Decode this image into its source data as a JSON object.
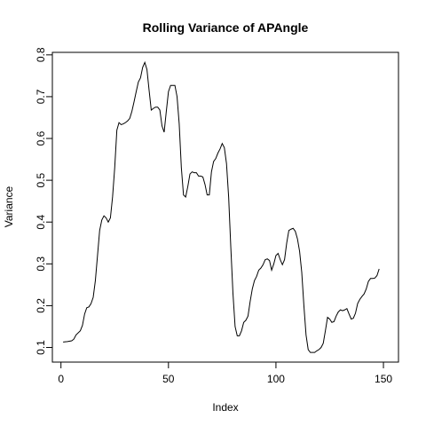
{
  "chart_data": {
    "type": "line",
    "title": "Rolling Variance of APAngle",
    "xlabel": "Index",
    "ylabel": "Variance",
    "xlim": [
      -4,
      157
    ],
    "ylim": [
      0.065,
      0.806
    ],
    "xticks": [
      0,
      50,
      100,
      150
    ],
    "yticks": [
      0.1,
      0.2,
      0.3,
      0.4,
      0.5,
      0.6,
      0.7,
      0.8
    ],
    "xtick_labels": [
      "0",
      "50",
      "100",
      "150"
    ],
    "ytick_labels": [
      "0.1",
      "0.2",
      "0.3",
      "0.4",
      "0.5",
      "0.6",
      "0.7",
      "0.8"
    ],
    "grid": false,
    "line_color": "#000000",
    "series": [
      {
        "points": [
          [
            1,
            0.113
          ],
          [
            3,
            0.114
          ],
          [
            5,
            0.116
          ],
          [
            6,
            0.12
          ],
          [
            7,
            0.13
          ],
          [
            9,
            0.14
          ],
          [
            10,
            0.153
          ],
          [
            11,
            0.18
          ],
          [
            12,
            0.195
          ],
          [
            13,
            0.197
          ],
          [
            14,
            0.205
          ],
          [
            15,
            0.22
          ],
          [
            16,
            0.26
          ],
          [
            17,
            0.32
          ],
          [
            18,
            0.38
          ],
          [
            19,
            0.405
          ],
          [
            20,
            0.415
          ],
          [
            21,
            0.41
          ],
          [
            22,
            0.4
          ],
          [
            23,
            0.41
          ],
          [
            24,
            0.46
          ],
          [
            25,
            0.53
          ],
          [
            26,
            0.62
          ],
          [
            27,
            0.638
          ],
          [
            28,
            0.633
          ],
          [
            29,
            0.635
          ],
          [
            30,
            0.638
          ],
          [
            31,
            0.642
          ],
          [
            32,
            0.648
          ],
          [
            33,
            0.665
          ],
          [
            34,
            0.688
          ],
          [
            35,
            0.712
          ],
          [
            36,
            0.735
          ],
          [
            37,
            0.745
          ],
          [
            38,
            0.77
          ],
          [
            39,
            0.782
          ],
          [
            40,
            0.765
          ],
          [
            41,
            0.715
          ],
          [
            42,
            0.668
          ],
          [
            43,
            0.672
          ],
          [
            44,
            0.675
          ],
          [
            45,
            0.675
          ],
          [
            46,
            0.668
          ],
          [
            47,
            0.63
          ],
          [
            48,
            0.615
          ],
          [
            49,
            0.665
          ],
          [
            50,
            0.712
          ],
          [
            51,
            0.727
          ],
          [
            52,
            0.727
          ],
          [
            53,
            0.727
          ],
          [
            54,
            0.7
          ],
          [
            55,
            0.635
          ],
          [
            56,
            0.53
          ],
          [
            57,
            0.465
          ],
          [
            58,
            0.46
          ],
          [
            59,
            0.485
          ],
          [
            60,
            0.515
          ],
          [
            61,
            0.52
          ],
          [
            62,
            0.518
          ],
          [
            63,
            0.518
          ],
          [
            64,
            0.51
          ],
          [
            65,
            0.51
          ],
          [
            66,
            0.508
          ],
          [
            67,
            0.49
          ],
          [
            68,
            0.465
          ],
          [
            69,
            0.465
          ],
          [
            70,
            0.52
          ],
          [
            71,
            0.545
          ],
          [
            72,
            0.552
          ],
          [
            73,
            0.565
          ],
          [
            74,
            0.575
          ],
          [
            75,
            0.588
          ],
          [
            76,
            0.578
          ],
          [
            77,
            0.54
          ],
          [
            78,
            0.46
          ],
          [
            79,
            0.34
          ],
          [
            80,
            0.23
          ],
          [
            81,
            0.15
          ],
          [
            82,
            0.128
          ],
          [
            83,
            0.128
          ],
          [
            84,
            0.14
          ],
          [
            85,
            0.16
          ],
          [
            86,
            0.165
          ],
          [
            87,
            0.175
          ],
          [
            88,
            0.21
          ],
          [
            89,
            0.24
          ],
          [
            90,
            0.26
          ],
          [
            91,
            0.27
          ],
          [
            92,
            0.285
          ],
          [
            93,
            0.29
          ],
          [
            94,
            0.298
          ],
          [
            95,
            0.31
          ],
          [
            96,
            0.312
          ],
          [
            97,
            0.308
          ],
          [
            98,
            0.285
          ],
          [
            99,
            0.3
          ],
          [
            100,
            0.32
          ],
          [
            101,
            0.325
          ],
          [
            102,
            0.31
          ],
          [
            103,
            0.298
          ],
          [
            104,
            0.31
          ],
          [
            105,
            0.35
          ],
          [
            106,
            0.38
          ],
          [
            107,
            0.383
          ],
          [
            108,
            0.385
          ],
          [
            109,
            0.378
          ],
          [
            110,
            0.36
          ],
          [
            111,
            0.33
          ],
          [
            112,
            0.28
          ],
          [
            113,
            0.2
          ],
          [
            114,
            0.13
          ],
          [
            115,
            0.095
          ],
          [
            116,
            0.088
          ],
          [
            117,
            0.088
          ],
          [
            118,
            0.088
          ],
          [
            119,
            0.092
          ],
          [
            120,
            0.095
          ],
          [
            121,
            0.1
          ],
          [
            122,
            0.11
          ],
          [
            123,
            0.14
          ],
          [
            124,
            0.172
          ],
          [
            125,
            0.168
          ],
          [
            126,
            0.16
          ],
          [
            127,
            0.162
          ],
          [
            128,
            0.175
          ],
          [
            129,
            0.185
          ],
          [
            130,
            0.19
          ],
          [
            131,
            0.188
          ],
          [
            132,
            0.19
          ],
          [
            133,
            0.193
          ],
          [
            134,
            0.18
          ],
          [
            135,
            0.168
          ],
          [
            136,
            0.17
          ],
          [
            137,
            0.182
          ],
          [
            138,
            0.205
          ],
          [
            139,
            0.215
          ],
          [
            140,
            0.222
          ],
          [
            141,
            0.228
          ],
          [
            142,
            0.24
          ],
          [
            143,
            0.258
          ],
          [
            144,
            0.265
          ],
          [
            145,
            0.265
          ],
          [
            146,
            0.266
          ],
          [
            147,
            0.272
          ],
          [
            148,
            0.288
          ]
        ]
      }
    ]
  }
}
